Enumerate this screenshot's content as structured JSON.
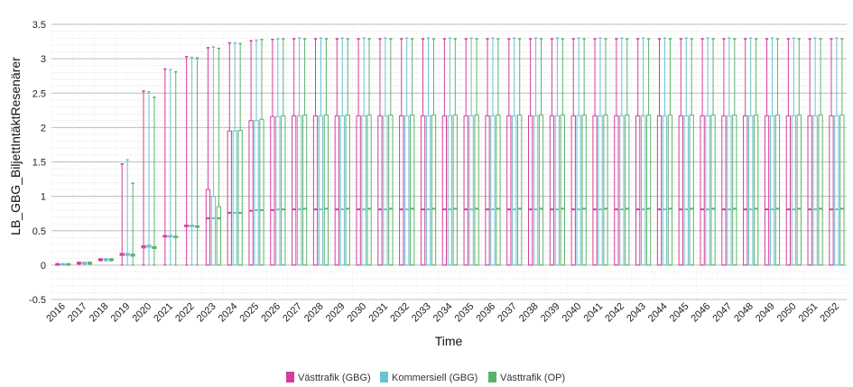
{
  "chart_data": {
    "type": "boxplot",
    "title": "",
    "xlabel": "Time",
    "ylabel": "LB_GBG_BiljettIntäktResenärer",
    "ylim": [
      -0.5,
      3.5
    ],
    "yticks": [
      "-0.5",
      "0",
      "0.5",
      "1",
      "1.5",
      "2",
      "2.5",
      "3",
      "3.5"
    ],
    "grid": true,
    "legend_position": "bottom",
    "categories": [
      "2016",
      "2017",
      "2018",
      "2019",
      "2020",
      "2021",
      "2022",
      "2023",
      "2024",
      "2025",
      "2026",
      "2027",
      "2028",
      "2029",
      "2030",
      "2031",
      "2032",
      "2033",
      "2034",
      "2035",
      "2036",
      "2037",
      "2038",
      "2039",
      "2040",
      "2041",
      "2042",
      "2043",
      "2044",
      "2045",
      "2046",
      "2047",
      "2048",
      "2049",
      "2050",
      "2051",
      "2052"
    ],
    "series": [
      {
        "name": "Västtrafik (GBG)",
        "color": "#d63d9a",
        "median": [
          0.01,
          0.03,
          0.08,
          0.16,
          0.27,
          0.42,
          0.57,
          0.68,
          0.76,
          0.79,
          0.8,
          0.81,
          0.81,
          0.81,
          0.81,
          0.81,
          0.81,
          0.81,
          0.81,
          0.81,
          0.81,
          0.81,
          0.81,
          0.81,
          0.81,
          0.81,
          0.81,
          0.81,
          0.81,
          0.81,
          0.81,
          0.81,
          0.81,
          0.81,
          0.81,
          0.81,
          0.81
        ],
        "q1": [
          0,
          0.02,
          0.07,
          0.14,
          0.25,
          0.41,
          0.56,
          0,
          0,
          0,
          0,
          0,
          0,
          0,
          0,
          0,
          0,
          0,
          0,
          0,
          0,
          0,
          0,
          0,
          0,
          0,
          0,
          0,
          0,
          0,
          0,
          0,
          0,
          0,
          0,
          0,
          0
        ],
        "q3": [
          0.02,
          0.04,
          0.09,
          0.17,
          0.28,
          0.43,
          0.58,
          1.1,
          1.95,
          2.1,
          2.16,
          2.17,
          2.17,
          2.17,
          2.17,
          2.17,
          2.17,
          2.17,
          2.17,
          2.17,
          2.17,
          2.17,
          2.17,
          2.17,
          2.17,
          2.17,
          2.17,
          2.17,
          2.17,
          2.17,
          2.17,
          2.17,
          2.17,
          2.17,
          2.17,
          2.17,
          2.17
        ],
        "min": [
          0,
          0.01,
          0.06,
          0,
          0,
          0,
          0,
          0,
          0,
          0,
          0,
          0,
          0,
          0,
          0,
          0,
          0,
          0,
          0,
          0,
          0,
          0,
          0,
          0,
          0,
          0,
          0,
          0,
          0,
          0,
          0,
          0,
          0,
          0,
          0,
          0,
          0
        ],
        "max": [
          0.02,
          0.04,
          0.09,
          1.47,
          2.53,
          2.85,
          3.03,
          3.16,
          3.23,
          3.26,
          3.28,
          3.29,
          3.29,
          3.29,
          3.29,
          3.29,
          3.29,
          3.29,
          3.29,
          3.29,
          3.29,
          3.29,
          3.29,
          3.29,
          3.29,
          3.29,
          3.29,
          3.29,
          3.29,
          3.29,
          3.29,
          3.29,
          3.29,
          3.29,
          3.29,
          3.29,
          3.29
        ]
      },
      {
        "name": "Kommersiell (GBG)",
        "color": "#69c2d0",
        "median": [
          0.01,
          0.03,
          0.08,
          0.16,
          0.28,
          0.42,
          0.57,
          0.68,
          0.76,
          0.8,
          0.81,
          0.81,
          0.81,
          0.81,
          0.81,
          0.81,
          0.81,
          0.81,
          0.81,
          0.81,
          0.81,
          0.81,
          0.81,
          0.81,
          0.81,
          0.81,
          0.81,
          0.81,
          0.81,
          0.81,
          0.81,
          0.81,
          0.81,
          0.81,
          0.81,
          0.81,
          0.81
        ],
        "q1": [
          0,
          0.02,
          0.07,
          0.14,
          0.26,
          0.41,
          0.56,
          0,
          0,
          0,
          0,
          0,
          0,
          0,
          0,
          0,
          0,
          0,
          0,
          0,
          0,
          0,
          0,
          0,
          0,
          0,
          0,
          0,
          0,
          0,
          0,
          0,
          0,
          0,
          0,
          0,
          0
        ],
        "q3": [
          0.02,
          0.04,
          0.09,
          0.17,
          0.29,
          0.43,
          0.58,
          1.0,
          1.95,
          2.1,
          2.16,
          2.17,
          2.17,
          2.17,
          2.17,
          2.17,
          2.17,
          2.17,
          2.17,
          2.17,
          2.17,
          2.17,
          2.17,
          2.17,
          2.17,
          2.17,
          2.17,
          2.17,
          2.17,
          2.17,
          2.17,
          2.17,
          2.17,
          2.17,
          2.17,
          2.17,
          2.17
        ],
        "min": [
          0,
          0.01,
          0.06,
          0,
          0,
          0,
          0,
          0,
          0,
          0,
          0,
          0,
          0,
          0,
          0,
          0,
          0,
          0,
          0,
          0,
          0,
          0,
          0,
          0,
          0,
          0,
          0,
          0,
          0,
          0,
          0,
          0,
          0,
          0,
          0,
          0,
          0
        ],
        "max": [
          0.02,
          0.04,
          0.09,
          1.53,
          2.52,
          2.84,
          3.02,
          3.17,
          3.23,
          3.27,
          3.29,
          3.3,
          3.3,
          3.3,
          3.3,
          3.3,
          3.3,
          3.3,
          3.3,
          3.3,
          3.3,
          3.3,
          3.3,
          3.3,
          3.3,
          3.3,
          3.3,
          3.3,
          3.3,
          3.3,
          3.3,
          3.3,
          3.3,
          3.3,
          3.3,
          3.3,
          3.3
        ]
      },
      {
        "name": "Västtrafik (OP)",
        "color": "#5cb26a",
        "median": [
          0.01,
          0.03,
          0.08,
          0.15,
          0.26,
          0.41,
          0.56,
          0.68,
          0.76,
          0.8,
          0.81,
          0.82,
          0.82,
          0.82,
          0.82,
          0.82,
          0.82,
          0.82,
          0.82,
          0.82,
          0.82,
          0.82,
          0.82,
          0.82,
          0.82,
          0.82,
          0.82,
          0.82,
          0.82,
          0.82,
          0.82,
          0.82,
          0.82,
          0.82,
          0.82,
          0.82,
          0.82
        ],
        "q1": [
          0,
          0.02,
          0.07,
          0.13,
          0.24,
          0.4,
          0.55,
          0,
          0,
          0,
          0,
          0,
          0,
          0,
          0,
          0,
          0,
          0,
          0,
          0,
          0,
          0,
          0,
          0,
          0,
          0,
          0,
          0,
          0,
          0,
          0,
          0,
          0,
          0,
          0,
          0,
          0
        ],
        "q3": [
          0.02,
          0.04,
          0.09,
          0.16,
          0.27,
          0.42,
          0.57,
          0.85,
          1.96,
          2.12,
          2.17,
          2.18,
          2.18,
          2.18,
          2.18,
          2.18,
          2.18,
          2.18,
          2.18,
          2.18,
          2.18,
          2.18,
          2.18,
          2.18,
          2.18,
          2.18,
          2.18,
          2.18,
          2.18,
          2.18,
          2.18,
          2.18,
          2.18,
          2.18,
          2.18,
          2.18,
          2.18
        ],
        "min": [
          0,
          0.01,
          0.06,
          0,
          0,
          0,
          0,
          0,
          0,
          0,
          0,
          0,
          0,
          0,
          0,
          0,
          0,
          0,
          0,
          0,
          0,
          0,
          0,
          0,
          0,
          0,
          0,
          0,
          0,
          0,
          0,
          0,
          0,
          0,
          0,
          0,
          0
        ],
        "max": [
          0.02,
          0.04,
          0.09,
          1.19,
          2.44,
          2.81,
          3.01,
          3.15,
          3.22,
          3.28,
          3.29,
          3.29,
          3.29,
          3.29,
          3.29,
          3.29,
          3.29,
          3.29,
          3.29,
          3.29,
          3.29,
          3.29,
          3.29,
          3.29,
          3.29,
          3.29,
          3.29,
          3.29,
          3.29,
          3.29,
          3.29,
          3.29,
          3.29,
          3.29,
          3.29,
          3.29,
          3.29
        ]
      }
    ]
  }
}
